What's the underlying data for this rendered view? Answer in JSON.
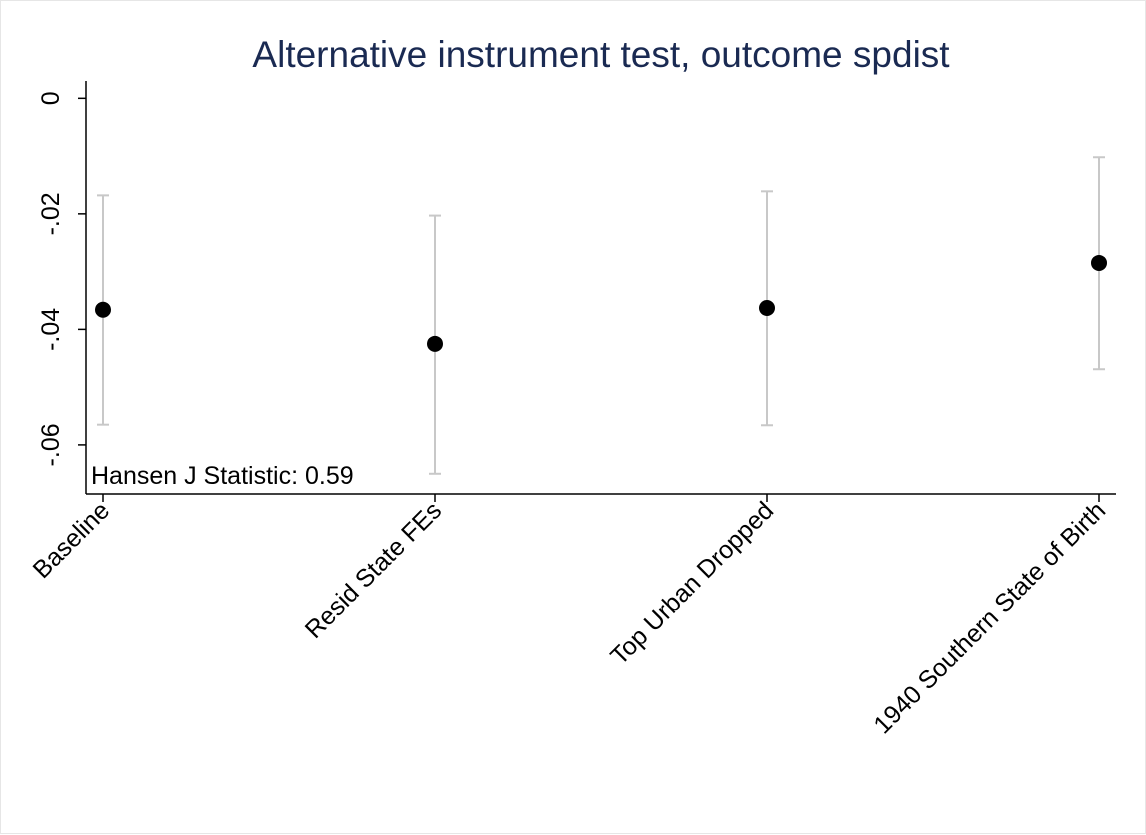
{
  "chart_data": {
    "type": "scatter",
    "title": "Alternative instrument test, outcome spdist",
    "xlabel": "",
    "ylabel": "",
    "categories": [
      "Baseline",
      "Resid State FEs",
      "Top Urban Dropped",
      "1940 Southern State of Birth"
    ],
    "estimates": [
      -0.0366,
      -0.0425,
      -0.0363,
      -0.0285
    ],
    "ci_lower": [
      -0.0565,
      -0.065,
      -0.0566,
      -0.0469
    ],
    "ci_upper": [
      -0.0168,
      -0.0203,
      -0.0161,
      -0.0102
    ],
    "ylim": [
      -0.0685,
      0.003
    ],
    "yticks": [
      0,
      -0.02,
      -0.04,
      -0.06
    ],
    "ytick_labels": [
      "0",
      "-.02",
      "-.04",
      "-.06"
    ],
    "annotation": "Hansen J Statistic: 0.59",
    "grid": false,
    "legend": "none",
    "colors": {
      "title": "#1a2a52",
      "point": "#000000",
      "ci": "#c8c8c8",
      "axis": "#000000"
    }
  }
}
